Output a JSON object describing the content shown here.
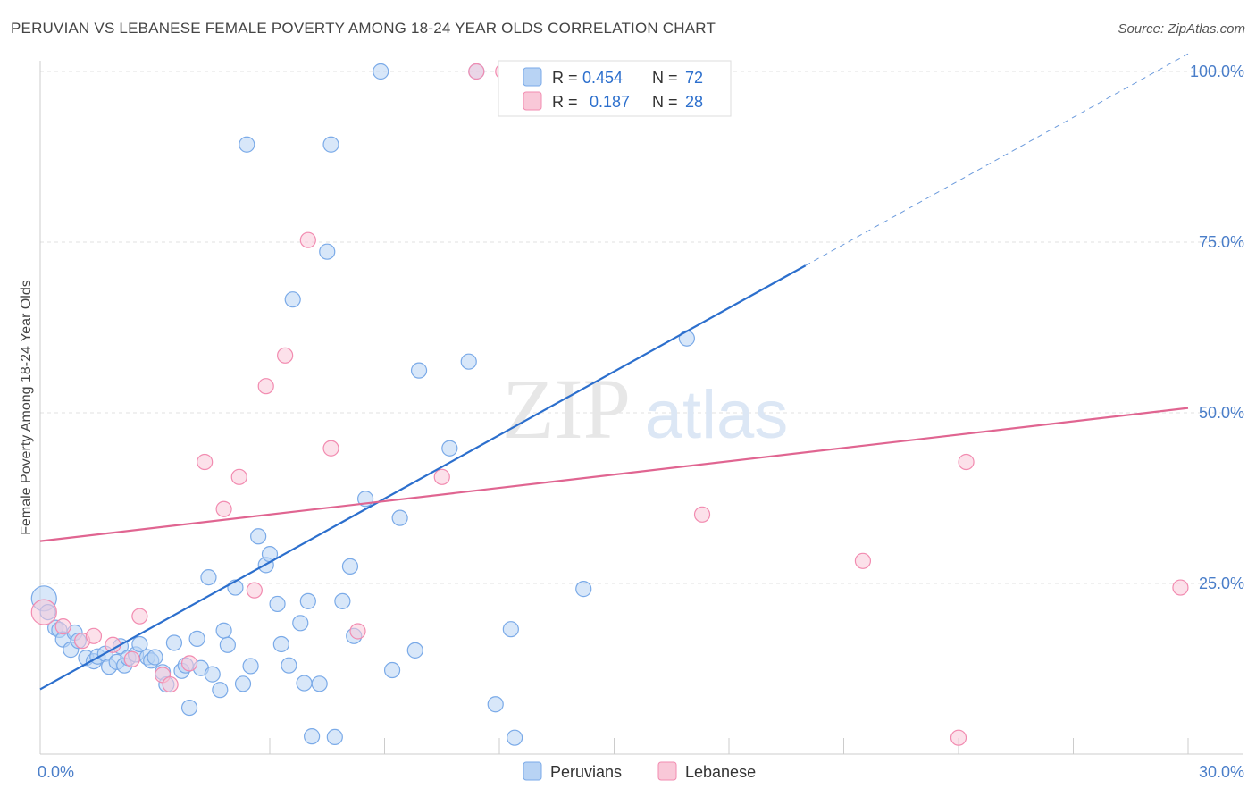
{
  "header": {
    "title": "PERUVIAN VS LEBANESE FEMALE POVERTY AMONG 18-24 YEAR OLDS CORRELATION CHART",
    "source": "Source: ZipAtlas.com"
  },
  "watermark": {
    "zip": "ZIP",
    "atlas": "atlas"
  },
  "stats_legend": {
    "rows": [
      {
        "r_label": "R =",
        "r_value": "0.454",
        "n_label": "N =",
        "n_value": "72"
      },
      {
        "r_label": "R =",
        "r_value": "0.187",
        "n_label": "N =",
        "n_value": "28"
      }
    ]
  },
  "colors": {
    "peruvians": "#7aaae8",
    "peruvians_fill": "#b8d3f4",
    "lebanese": "#f28bb0",
    "lebanese_fill": "#f9c8d8",
    "trend_peruvians": "#2c6fcd",
    "trend_lebanese": "#e06591",
    "tick_label": "#4a7ec9",
    "grid": "#e2e2e2"
  },
  "chart_data": {
    "type": "scatter",
    "xlabel": "",
    "ylabel": "Female Poverty Among 18-24 Year Olds",
    "xlim": [
      0,
      30
    ],
    "ylim": [
      0,
      100
    ],
    "x_tick_labels": [
      {
        "value": 0,
        "label": "0.0%"
      },
      {
        "value": 30,
        "label": "30.0%"
      }
    ],
    "y_tick_labels": [
      {
        "value": 25,
        "label": "25.0%"
      },
      {
        "value": 50,
        "label": "50.0%"
      },
      {
        "value": 75,
        "label": "75.0%"
      },
      {
        "value": 100,
        "label": "100.0%"
      }
    ],
    "grid": true,
    "legend_position": "bottom-center",
    "series": [
      {
        "name": "Peruvians",
        "trendline": {
          "x0": 0,
          "y0": 9.5,
          "x1": 30,
          "y1": 102.6,
          "solid_until_x": 20
        },
        "points": [
          {
            "x": 0.1,
            "y": 22.8,
            "big": true
          },
          {
            "x": 0.2,
            "y": 20.8
          },
          {
            "x": 0.4,
            "y": 18.5
          },
          {
            "x": 0.5,
            "y": 18.2
          },
          {
            "x": 0.6,
            "y": 16.8
          },
          {
            "x": 0.8,
            "y": 15.3
          },
          {
            "x": 0.9,
            "y": 17.8
          },
          {
            "x": 1.0,
            "y": 16.6
          },
          {
            "x": 1.2,
            "y": 14.1
          },
          {
            "x": 1.4,
            "y": 13.6
          },
          {
            "x": 1.5,
            "y": 14.3
          },
          {
            "x": 1.7,
            "y": 14.7
          },
          {
            "x": 1.8,
            "y": 12.8
          },
          {
            "x": 2.0,
            "y": 13.5
          },
          {
            "x": 2.1,
            "y": 15.8
          },
          {
            "x": 2.2,
            "y": 13.0
          },
          {
            "x": 2.3,
            "y": 14.1
          },
          {
            "x": 2.5,
            "y": 14.6
          },
          {
            "x": 2.6,
            "y": 16.1
          },
          {
            "x": 2.8,
            "y": 14.2
          },
          {
            "x": 2.9,
            "y": 13.7
          },
          {
            "x": 3.0,
            "y": 14.2
          },
          {
            "x": 3.2,
            "y": 12.0
          },
          {
            "x": 3.3,
            "y": 10.2
          },
          {
            "x": 3.5,
            "y": 16.3
          },
          {
            "x": 3.7,
            "y": 12.2
          },
          {
            "x": 3.8,
            "y": 13.0
          },
          {
            "x": 3.9,
            "y": 6.8
          },
          {
            "x": 4.1,
            "y": 16.9
          },
          {
            "x": 4.2,
            "y": 12.6
          },
          {
            "x": 4.4,
            "y": 25.9
          },
          {
            "x": 4.5,
            "y": 11.7
          },
          {
            "x": 4.7,
            "y": 9.4
          },
          {
            "x": 4.8,
            "y": 18.1
          },
          {
            "x": 4.9,
            "y": 16.0
          },
          {
            "x": 5.1,
            "y": 24.4
          },
          {
            "x": 5.3,
            "y": 10.3
          },
          {
            "x": 5.4,
            "y": 89.3
          },
          {
            "x": 5.5,
            "y": 12.9
          },
          {
            "x": 5.7,
            "y": 31.9
          },
          {
            "x": 5.9,
            "y": 27.7
          },
          {
            "x": 6.0,
            "y": 29.3
          },
          {
            "x": 6.2,
            "y": 22.0
          },
          {
            "x": 6.3,
            "y": 16.1
          },
          {
            "x": 6.5,
            "y": 13.0
          },
          {
            "x": 6.6,
            "y": 66.6
          },
          {
            "x": 6.8,
            "y": 19.2
          },
          {
            "x": 6.9,
            "y": 10.4
          },
          {
            "x": 7.0,
            "y": 22.4
          },
          {
            "x": 7.1,
            "y": 2.6
          },
          {
            "x": 7.3,
            "y": 10.3
          },
          {
            "x": 7.5,
            "y": 73.6
          },
          {
            "x": 7.6,
            "y": 89.3
          },
          {
            "x": 7.7,
            "y": 2.5
          },
          {
            "x": 7.9,
            "y": 22.4
          },
          {
            "x": 8.1,
            "y": 27.5
          },
          {
            "x": 8.2,
            "y": 17.3
          },
          {
            "x": 8.5,
            "y": 37.4
          },
          {
            "x": 8.9,
            "y": 100.0
          },
          {
            "x": 9.2,
            "y": 12.3
          },
          {
            "x": 9.4,
            "y": 34.6
          },
          {
            "x": 9.8,
            "y": 15.2
          },
          {
            "x": 9.9,
            "y": 56.2
          },
          {
            "x": 10.7,
            "y": 44.8
          },
          {
            "x": 11.2,
            "y": 57.5
          },
          {
            "x": 11.4,
            "y": 100.0
          },
          {
            "x": 11.9,
            "y": 7.3
          },
          {
            "x": 12.3,
            "y": 18.3
          },
          {
            "x": 12.4,
            "y": 2.4
          },
          {
            "x": 14.0,
            "y": 100.0
          },
          {
            "x": 14.2,
            "y": 24.2
          },
          {
            "x": 16.9,
            "y": 60.9
          }
        ]
      },
      {
        "name": "Lebanese",
        "trendline": {
          "x0": 0,
          "y0": 31.2,
          "x1": 30,
          "y1": 50.7
        },
        "points": [
          {
            "x": 0.1,
            "y": 20.8,
            "big": true
          },
          {
            "x": 0.6,
            "y": 18.7
          },
          {
            "x": 1.1,
            "y": 16.6
          },
          {
            "x": 1.4,
            "y": 17.3
          },
          {
            "x": 1.9,
            "y": 16.0
          },
          {
            "x": 2.4,
            "y": 13.9
          },
          {
            "x": 2.6,
            "y": 20.2
          },
          {
            "x": 3.2,
            "y": 11.6
          },
          {
            "x": 3.4,
            "y": 10.2
          },
          {
            "x": 3.9,
            "y": 13.3
          },
          {
            "x": 4.3,
            "y": 42.8
          },
          {
            "x": 4.8,
            "y": 35.9
          },
          {
            "x": 5.2,
            "y": 40.6
          },
          {
            "x": 5.6,
            "y": 24.0
          },
          {
            "x": 5.9,
            "y": 53.9
          },
          {
            "x": 6.4,
            "y": 58.4
          },
          {
            "x": 7.0,
            "y": 75.3
          },
          {
            "x": 7.6,
            "y": 44.8
          },
          {
            "x": 8.3,
            "y": 18.0
          },
          {
            "x": 10.5,
            "y": 40.6
          },
          {
            "x": 11.4,
            "y": 100.0
          },
          {
            "x": 12.1,
            "y": 100.0
          },
          {
            "x": 13.6,
            "y": 100.0
          },
          {
            "x": 17.3,
            "y": 35.1
          },
          {
            "x": 21.5,
            "y": 28.3
          },
          {
            "x": 24.0,
            "y": 2.4
          },
          {
            "x": 24.2,
            "y": 42.8
          },
          {
            "x": 29.8,
            "y": 24.4
          }
        ]
      }
    ]
  }
}
